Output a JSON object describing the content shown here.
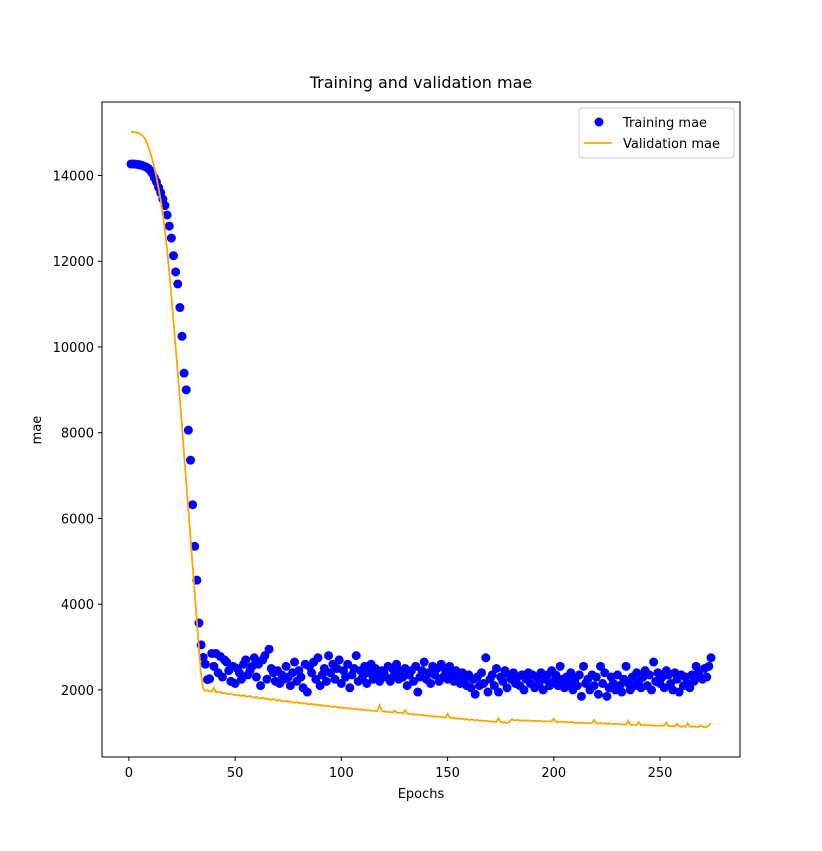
{
  "chart_data": {
    "type": "line",
    "title": "Training and validation mae",
    "xlabel": "Epochs",
    "ylabel": "mae",
    "xlim": [
      -12.65,
      287.65
    ],
    "ylim": [
      435,
      15715
    ],
    "xticks": [
      0,
      50,
      100,
      150,
      200,
      250
    ],
    "yticks": [
      2000,
      4000,
      6000,
      8000,
      10000,
      12000,
      14000
    ],
    "legend": "upper right",
    "x": [
      1,
      2,
      3,
      4,
      5,
      6,
      7,
      8,
      9,
      10,
      11,
      12,
      13,
      14,
      15,
      16,
      17,
      18,
      19,
      20,
      21,
      22,
      23,
      24,
      25,
      26,
      27,
      28,
      29,
      30,
      31,
      32,
      33,
      34,
      35,
      36,
      37,
      38,
      39,
      40,
      41,
      42,
      43,
      44,
      45,
      46,
      47,
      48,
      49,
      50,
      51,
      52,
      53,
      54,
      55,
      56,
      57,
      58,
      59,
      60,
      61,
      62,
      63,
      64,
      65,
      66,
      67,
      68,
      69,
      70,
      71,
      72,
      73,
      74,
      75,
      76,
      77,
      78,
      79,
      80,
      81,
      82,
      83,
      84,
      85,
      86,
      87,
      88,
      89,
      90,
      91,
      92,
      93,
      94,
      95,
      96,
      97,
      98,
      99,
      100,
      101,
      102,
      103,
      104,
      105,
      106,
      107,
      108,
      109,
      110,
      111,
      112,
      113,
      114,
      115,
      116,
      117,
      118,
      119,
      120,
      121,
      122,
      123,
      124,
      125,
      126,
      127,
      128,
      129,
      130,
      131,
      132,
      133,
      134,
      135,
      136,
      137,
      138,
      139,
      140,
      141,
      142,
      143,
      144,
      145,
      146,
      147,
      148,
      149,
      150,
      151,
      152,
      153,
      154,
      155,
      156,
      157,
      158,
      159,
      160,
      161,
      162,
      163,
      164,
      165,
      166,
      167,
      168,
      169,
      170,
      171,
      172,
      173,
      174,
      175,
      176,
      177,
      178,
      179,
      180,
      181,
      182,
      183,
      184,
      185,
      186,
      187,
      188,
      189,
      190,
      191,
      192,
      193,
      194,
      195,
      196,
      197,
      198,
      199,
      200,
      201,
      202,
      203,
      204,
      205,
      206,
      207,
      208,
      209,
      210,
      211,
      212,
      213,
      214,
      215,
      216,
      217,
      218,
      219,
      220,
      221,
      222,
      223,
      224,
      225,
      226,
      227,
      228,
      229,
      230,
      231,
      232,
      233,
      234,
      235,
      236,
      237,
      238,
      239,
      240,
      241,
      242,
      243,
      244,
      245,
      246,
      247,
      248,
      249,
      250,
      251,
      252,
      253,
      254,
      255,
      256,
      257,
      258,
      259,
      260,
      261,
      262,
      263,
      264,
      265,
      266,
      267,
      268,
      269,
      270,
      271,
      272,
      273,
      274
    ],
    "series": [
      {
        "name": "Training mae",
        "color": "#0000ff",
        "mode": "markers",
        "values": [
          14270,
          14270,
          14265,
          14260,
          14250,
          14240,
          14220,
          14200,
          14170,
          14120,
          14050,
          13950,
          13850,
          13720,
          13600,
          13450,
          13300,
          13080,
          12820,
          12540,
          12130,
          11750,
          11470,
          10920,
          10250,
          9390,
          9000,
          8060,
          7360,
          6320,
          5350,
          4560,
          3560,
          3050,
          2760,
          2600,
          2240,
          2260,
          2850,
          2550,
          2850,
          2400,
          2780,
          2300,
          2700,
          2650,
          2450,
          2200,
          2550,
          2150,
          2500,
          2400,
          2250,
          2600,
          2700,
          2350,
          2450,
          2550,
          2750,
          2300,
          2600,
          2100,
          2700,
          2800,
          2250,
          2950,
          2500,
          2400,
          2200,
          2450,
          2150,
          2350,
          2250,
          2550,
          2300,
          2100,
          2400,
          2650,
          2200,
          2450,
          2300,
          2050,
          2600,
          1950,
          2550,
          2400,
          2650,
          2250,
          2750,
          2100,
          2350,
          2500,
          2200,
          2800,
          2400,
          2600,
          2250,
          2500,
          2700,
          2150,
          2450,
          2300,
          2600,
          2050,
          2350,
          2500,
          2800,
          2200,
          2450,
          2300,
          2550,
          2150,
          2400,
          2600,
          2250,
          2500,
          2350,
          2200,
          2450,
          2400,
          2300,
          2550,
          2200,
          2500,
          2350,
          2600,
          2250,
          2450,
          2300,
          2500,
          2100,
          2350,
          2450,
          2200,
          2550,
          1950,
          2300,
          2450,
          2650,
          2250,
          2400,
          2150,
          2550,
          2350,
          2500,
          2200,
          2600,
          2300,
          2450,
          2250,
          2550,
          2350,
          2200,
          2450,
          2300,
          2150,
          2400,
          2250,
          2100,
          2350,
          2050,
          2250,
          1900,
          2300,
          2100,
          2400,
          2150,
          2750,
          1950,
          2250,
          2350,
          2100,
          2500,
          1950,
          2300,
          2200,
          2450,
          2050,
          2350,
          2250,
          2400,
          2150,
          2300,
          2100,
          2350,
          2000,
          2250,
          2400,
          2150,
          2350,
          2050,
          2300,
          2150,
          2400,
          2000,
          2250,
          2350,
          2100,
          2450,
          2200,
          2350,
          2100,
          2550,
          2250,
          2050,
          2300,
          2150,
          2400,
          2000,
          2250,
          2100,
          2350,
          1850,
          2550,
          2150,
          2250,
          2000,
          2350,
          2100,
          2300,
          1900,
          2550,
          2150,
          2400,
          1850,
          2050,
          2300,
          2150,
          2000,
          2350,
          2100,
          1950,
          2250,
          2550,
          2150,
          2000,
          2300,
          2100,
          2400,
          2200,
          2050,
          2300,
          2450,
          2100,
          2350,
          2000,
          2650,
          2200,
          2400,
          2150,
          2300,
          2050,
          2450,
          2350,
          2150,
          2000,
          2400,
          2250,
          1950,
          2350,
          2100,
          2300,
          2150,
          2050,
          2350,
          2200,
          2550,
          2400,
          2300,
          2250,
          2500,
          2300,
          2550,
          2750
        ]
      },
      {
        "name": "Validation mae",
        "color": "#ffa500",
        "mode": "lines",
        "values": [
          15020,
          15020,
          15010,
          15000,
          14980,
          14950,
          14900,
          14820,
          14700,
          14550,
          14380,
          14180,
          13950,
          13700,
          13420,
          13100,
          12700,
          12250,
          11750,
          11200,
          10600,
          10000,
          9400,
          8800,
          8150,
          7500,
          6850,
          6200,
          5550,
          4900,
          4250,
          3600,
          2950,
          2350,
          2020,
          1980,
          1990,
          1970,
          1960,
          2050,
          1950,
          1940,
          1960,
          1920,
          1930,
          1910,
          1900,
          1920,
          1890,
          1880,
          1890,
          1870,
          1860,
          1880,
          1850,
          1840,
          1860,
          1830,
          1820,
          1840,
          1810,
          1800,
          1820,
          1790,
          1800,
          1780,
          1770,
          1790,
          1760,
          1750,
          1770,
          1740,
          1730,
          1750,
          1720,
          1730,
          1710,
          1700,
          1720,
          1690,
          1700,
          1680,
          1690,
          1670,
          1660,
          1680,
          1650,
          1660,
          1640,
          1650,
          1630,
          1640,
          1620,
          1630,
          1610,
          1600,
          1620,
          1590,
          1600,
          1580,
          1590,
          1570,
          1580,
          1560,
          1570,
          1550,
          1560,
          1540,
          1550,
          1530,
          1540,
          1520,
          1530,
          1510,
          1520,
          1500,
          1510,
          1640,
          1520,
          1490,
          1500,
          1480,
          1490,
          1470,
          1520,
          1480,
          1460,
          1470,
          1450,
          1530,
          1450,
          1440,
          1430,
          1440,
          1420,
          1430,
          1410,
          1420,
          1400,
          1410,
          1390,
          1400,
          1380,
          1390,
          1370,
          1380,
          1360,
          1370,
          1350,
          1440,
          1360,
          1340,
          1350,
          1330,
          1340,
          1320,
          1330,
          1310,
          1320,
          1300,
          1310,
          1300,
          1290,
          1300,
          1280,
          1290,
          1270,
          1280,
          1270,
          1260,
          1270,
          1250,
          1260,
          1340,
          1250,
          1240,
          1250,
          1230,
          1240,
          1310,
          1300,
          1290,
          1300,
          1290,
          1280,
          1290,
          1280,
          1290,
          1280,
          1270,
          1280,
          1270,
          1280,
          1270,
          1260,
          1270,
          1260,
          1270,
          1260,
          1330,
          1260,
          1250,
          1260,
          1250,
          1260,
          1250,
          1240,
          1250,
          1240,
          1230,
          1240,
          1230,
          1240,
          1230,
          1220,
          1230,
          1220,
          1230,
          1300,
          1220,
          1220,
          1230,
          1210,
          1220,
          1210,
          1220,
          1200,
          1210,
          1200,
          1210,
          1200,
          1190,
          1200,
          1190,
          1280,
          1190,
          1180,
          1190,
          1180,
          1250,
          1180,
          1190,
          1170,
          1180,
          1170,
          1180,
          1160,
          1170,
          1160,
          1170,
          1160,
          1170,
          1240,
          1160,
          1150,
          1160,
          1150,
          1210,
          1150,
          1140,
          1150,
          1140,
          1220,
          1150,
          1140,
          1150,
          1140,
          1130,
          1180,
          1140,
          1130,
          1140,
          1180,
          1220
        ]
      }
    ]
  }
}
